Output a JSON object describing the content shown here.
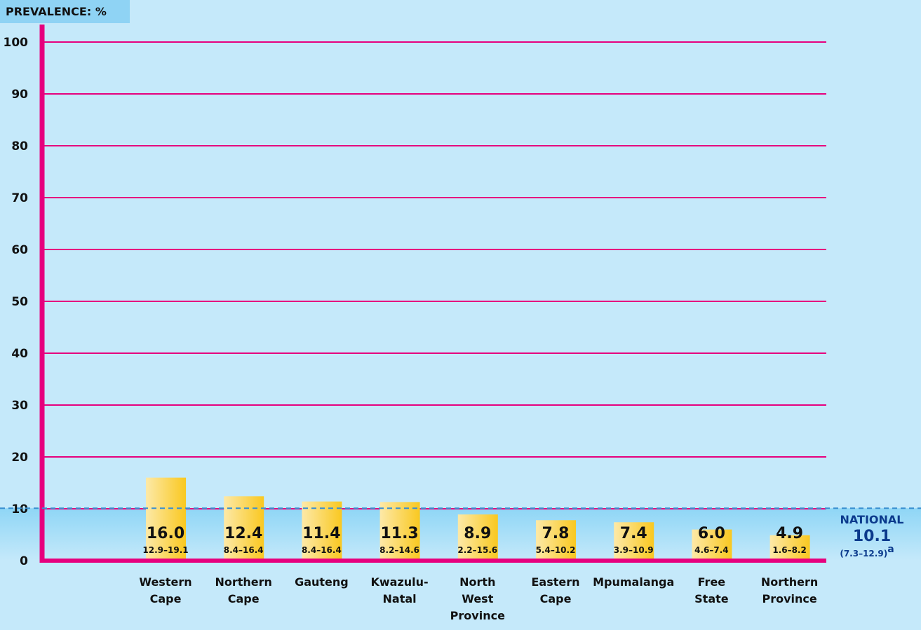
{
  "chart_data": {
    "type": "bar",
    "title": "PREVALENCE: %",
    "categories": [
      "Western Cape",
      "Northern Cape",
      "Gauteng",
      "Kwazulu-Natal",
      "North West Province",
      "Eastern Cape",
      "Mpumalanga",
      "Free State",
      "Northern Province"
    ],
    "values": [
      16.0,
      12.4,
      11.4,
      11.3,
      8.9,
      7.8,
      7.4,
      6.0,
      4.9
    ],
    "value_labels": [
      "16.0",
      "12.4",
      "11.4",
      "11.3",
      "8.9",
      "7.8",
      "7.4",
      "6.0",
      "4.9"
    ],
    "interval_labels": [
      "12.9–19.1",
      "8.4–16.4",
      "8.4–16.4",
      "8.2–14.6",
      "2.2–15.6",
      "5.4–10.2",
      "3.9–10.9",
      "4.6–7.4",
      "1.6–8.2"
    ],
    "color": "#f9c820",
    "grid_color": "#e6007e",
    "ylim": [
      0,
      100
    ],
    "yticks": [
      0,
      10,
      20,
      30,
      40,
      50,
      60,
      70,
      80,
      90,
      100
    ],
    "grid": true,
    "national": {
      "label": "NATIONAL",
      "value": 10.1,
      "value_label": "10.1",
      "interval_label": "(7.3–12.9)",
      "note": "a"
    }
  }
}
